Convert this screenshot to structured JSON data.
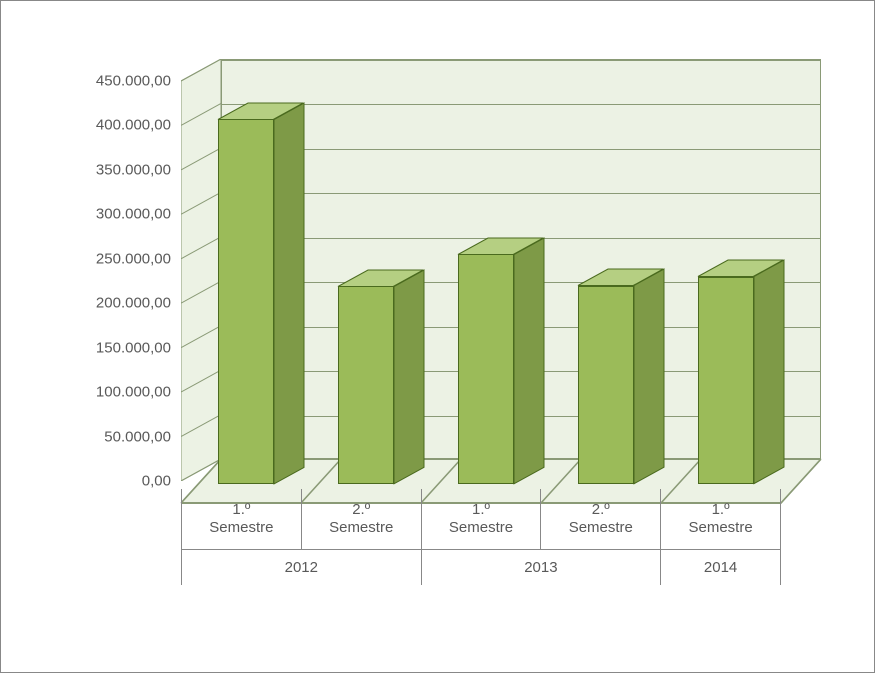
{
  "chart": {
    "type": "bar-3d",
    "background_color": "#ffffff",
    "plot_background_color": "#ecf2e4",
    "grid_color": "#8a9a76",
    "axis_line_color": "#888888",
    "text_color": "#595959",
    "font_family": "Arial",
    "tick_fontsize": 15,
    "category_fontsize": 15,
    "depth_dx": 40,
    "depth_dy": 22,
    "y": {
      "min": 0,
      "max": 450000,
      "step": 50000,
      "tick_labels": [
        "0,00",
        "50.000,00",
        "100.000,00",
        "150.000,00",
        "200.000,00",
        "250.000,00",
        "300.000,00",
        "350.000,00",
        "400.000,00",
        "450.000,00"
      ]
    },
    "bars": {
      "color_front": "#9bbb59",
      "color_side": "#7e9a47",
      "color_top": "#b5cf82",
      "border_color": "#4a6a1e",
      "bar_width_fraction": 0.46,
      "depth_fraction": 0.75
    },
    "categories": [
      {
        "label_line1": "1.º",
        "label_line2": "Semestre",
        "group": "2012",
        "value": 410000
      },
      {
        "label_line1": "2.º",
        "label_line2": "Semestre",
        "group": "2012",
        "value": 222000
      },
      {
        "label_line1": "1.º",
        "label_line2": "Semestre",
        "group": "2013",
        "value": 258000
      },
      {
        "label_line1": "2.º",
        "label_line2": "Semestre",
        "group": "2013",
        "value": 223000
      },
      {
        "label_line1": "1.º",
        "label_line2": "Semestre",
        "group": "2014",
        "value": 233000
      }
    ],
    "groups": [
      {
        "label": "2012",
        "span": 2
      },
      {
        "label": "2013",
        "span": 2
      },
      {
        "label": "2014",
        "span": 1
      }
    ]
  }
}
